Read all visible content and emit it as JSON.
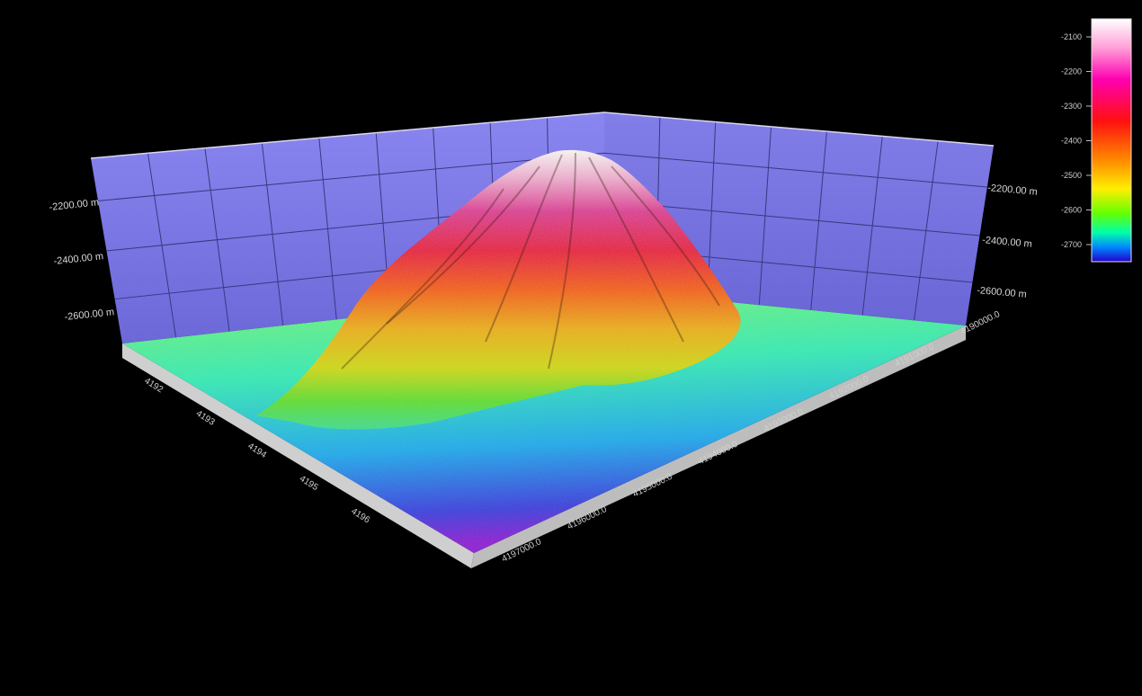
{
  "chart_data": {
    "type": "surface",
    "title": "",
    "z_axis": {
      "unit": "m",
      "left_tick_labels": [
        "-2200.00 m",
        "-2400.00 m",
        "-2600.00 m"
      ],
      "right_tick_labels": [
        "-2200.00 m",
        "-2400.00 m",
        "-2600.00 m"
      ]
    },
    "front_axis_tick_labels": [
      "4197000.0",
      "4196000.0",
      "4195000.0",
      "4194000.0",
      "4193000.0",
      "4192000.0",
      "4191000.0",
      "4190000.0"
    ],
    "left_axis_tick_labels": [
      "4192",
      "4193",
      "4194",
      "4195",
      "4196"
    ],
    "colorbar": {
      "ticks": [
        -2100,
        -2200,
        -2300,
        -2400,
        -2500,
        -2600,
        -2700
      ],
      "colors": [
        "#ffffff",
        "#ff88cc",
        "#ff00aa",
        "#ff1010",
        "#ff7700",
        "#ffcc00",
        "#ffff00",
        "#88ff00",
        "#00ff66",
        "#00ddff",
        "#0044ff",
        "#3300cc"
      ]
    },
    "surface": {
      "base_depth_m": -2700,
      "peak_depth_m": -2090,
      "grid": "on"
    }
  }
}
